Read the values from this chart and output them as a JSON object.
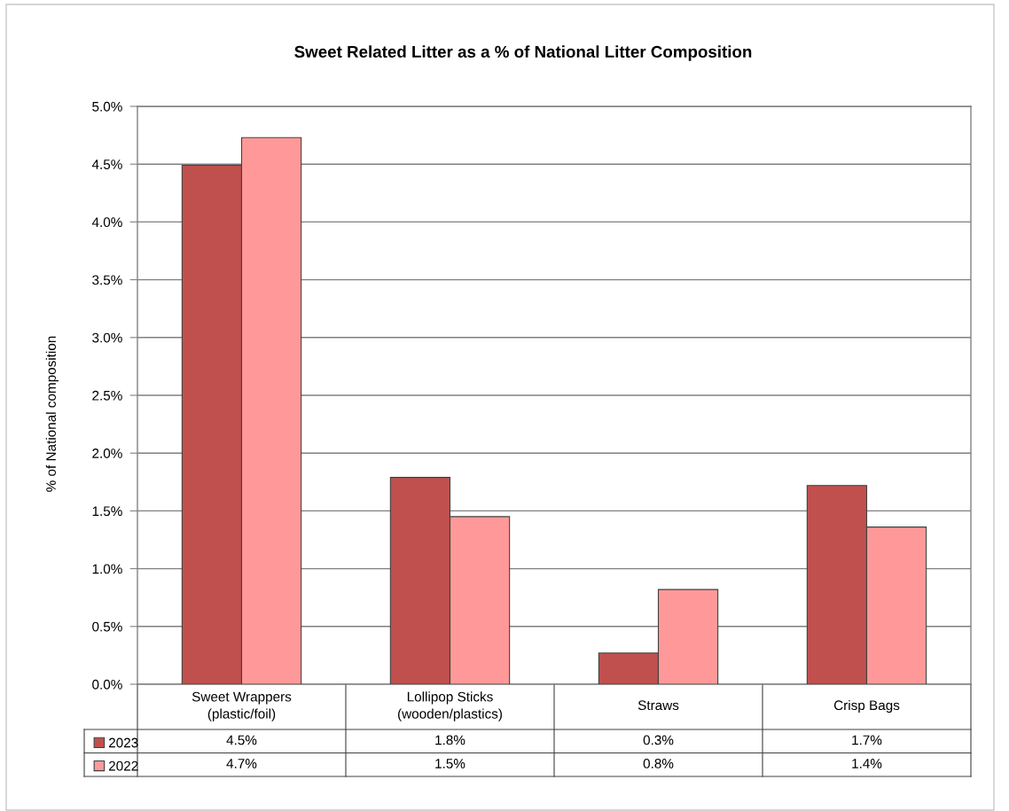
{
  "chart_data": {
    "type": "bar",
    "title": "Sweet Related Litter as a % of National Litter Composition",
    "ylabel": "% of National composition",
    "categories": [
      "Sweet Wrappers\n(plastic/foil)",
      "Lollipop Sticks\n(wooden/plastics)",
      "Straws",
      "Crisp Bags"
    ],
    "series": [
      {
        "name": "2023",
        "color": "#c0504d",
        "values": [
          4.49,
          1.79,
          0.27,
          1.72
        ],
        "value_labels": [
          "4.5%",
          "1.8%",
          "0.3%",
          "1.7%"
        ]
      },
      {
        "name": "2022",
        "color": "#ff9999",
        "values": [
          4.73,
          1.45,
          0.82,
          1.36
        ],
        "value_labels": [
          "4.7%",
          "1.5%",
          "0.8%",
          "1.4%"
        ]
      }
    ],
    "ylim": [
      0,
      5
    ],
    "yticks": [
      {
        "value": 0,
        "label": "0.0%"
      },
      {
        "value": 0.5,
        "label": "0.5%"
      },
      {
        "value": 1,
        "label": "1.0%"
      },
      {
        "value": 1.5,
        "label": "1.5%"
      },
      {
        "value": 2,
        "label": "2.0%"
      },
      {
        "value": 2.5,
        "label": "2.5%"
      },
      {
        "value": 3,
        "label": "3.0%"
      },
      {
        "value": 3.5,
        "label": "3.5%"
      },
      {
        "value": 4,
        "label": "4.0%"
      },
      {
        "value": 4.5,
        "label": "4.5%"
      },
      {
        "value": 5,
        "label": "5.0%"
      }
    ],
    "grid": "y",
    "legend": "bottom left"
  }
}
